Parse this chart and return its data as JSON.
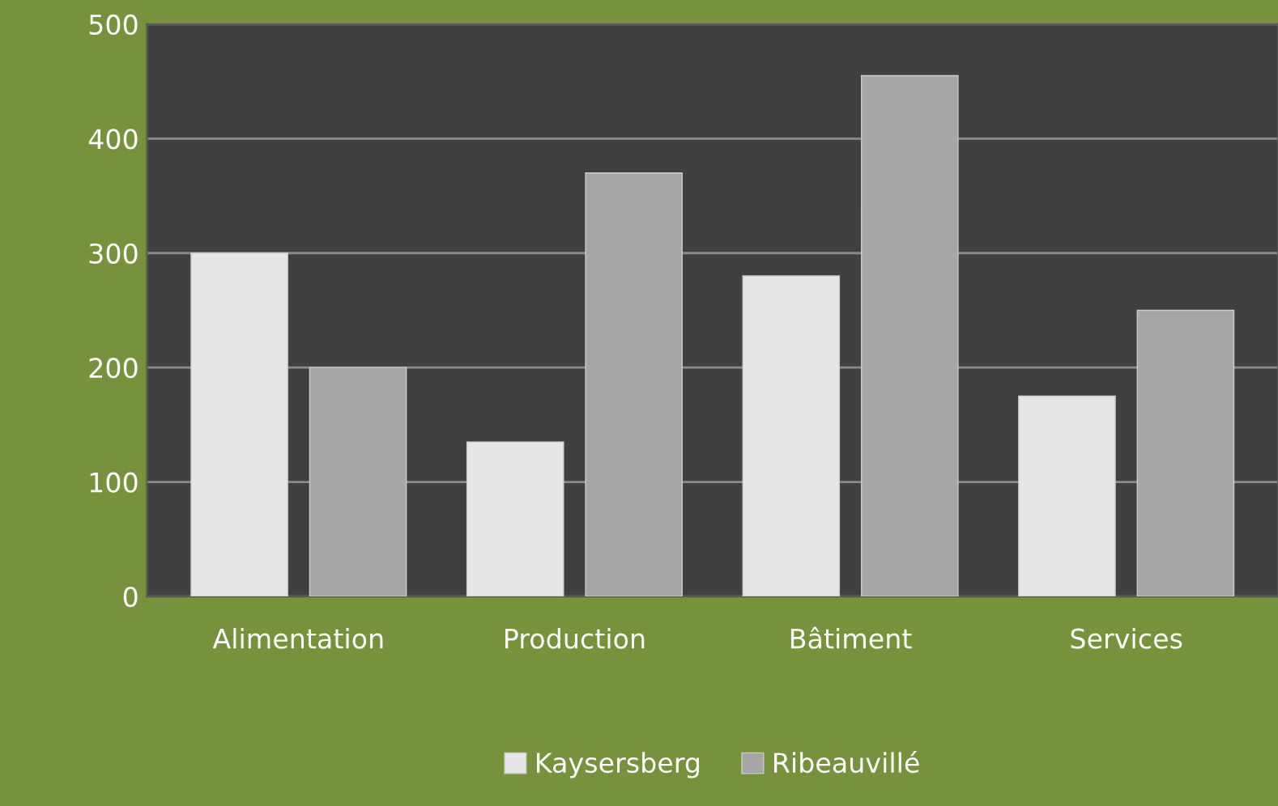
{
  "chart_data": {
    "type": "bar",
    "categories": [
      "Alimentation",
      "Production",
      "Bâtiment",
      "Services"
    ],
    "series": [
      {
        "name": "Kaysersberg",
        "color": "#e6e6e6",
        "values": [
          300,
          135,
          280,
          175
        ]
      },
      {
        "name": "Ribeauvillé",
        "color": "#a6a6a6",
        "values": [
          200,
          370,
          455,
          250
        ]
      }
    ],
    "ylim": [
      0,
      500
    ],
    "yticks": [
      0,
      100,
      200,
      300,
      400,
      500
    ],
    "grid": "y",
    "legend": "bottom"
  }
}
